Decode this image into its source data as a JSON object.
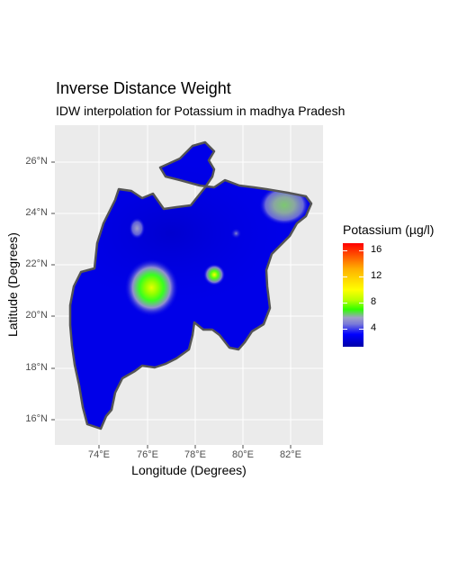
{
  "title": "Inverse Distance Weight",
  "subtitle": "IDW interpolation for Potassium in madhya Pradesh",
  "x_axis": {
    "label": "Longitude (Degrees)",
    "ticks": [
      "74°E",
      "76°E",
      "78°E",
      "80°E",
      "82°E"
    ]
  },
  "y_axis": {
    "label": "Latitude (Degrees)",
    "ticks": [
      "26°N",
      "24°N",
      "22°N",
      "20°N",
      "18°N",
      "16°N"
    ]
  },
  "legend": {
    "title": "Potassium (µg/l)",
    "ticks": [
      "16",
      "12",
      "8",
      "4"
    ]
  },
  "colors": {
    "panel_background": "#ebebeb",
    "grid": "#ffffff",
    "region_fill": "#0000e8",
    "region_border": "#555555",
    "low": "#0000a8",
    "mid": "#2fff00",
    "high": "#ff0000"
  },
  "map_data": {
    "longitude_range": [
      72.2,
      83.3
    ],
    "latitude_range": [
      15.1,
      27.5
    ],
    "hotspots": [
      {
        "lon": 76.2,
        "lat": 21.2,
        "value": 10
      },
      {
        "lon": 78.8,
        "lat": 21.7,
        "value": 10
      },
      {
        "lon": 81.7,
        "lat": 24.4,
        "value": 7
      },
      {
        "lon": 75.6,
        "lat": 23.5,
        "value": 5
      },
      {
        "lon": 79.7,
        "lat": 23.3,
        "value": 4
      }
    ]
  }
}
